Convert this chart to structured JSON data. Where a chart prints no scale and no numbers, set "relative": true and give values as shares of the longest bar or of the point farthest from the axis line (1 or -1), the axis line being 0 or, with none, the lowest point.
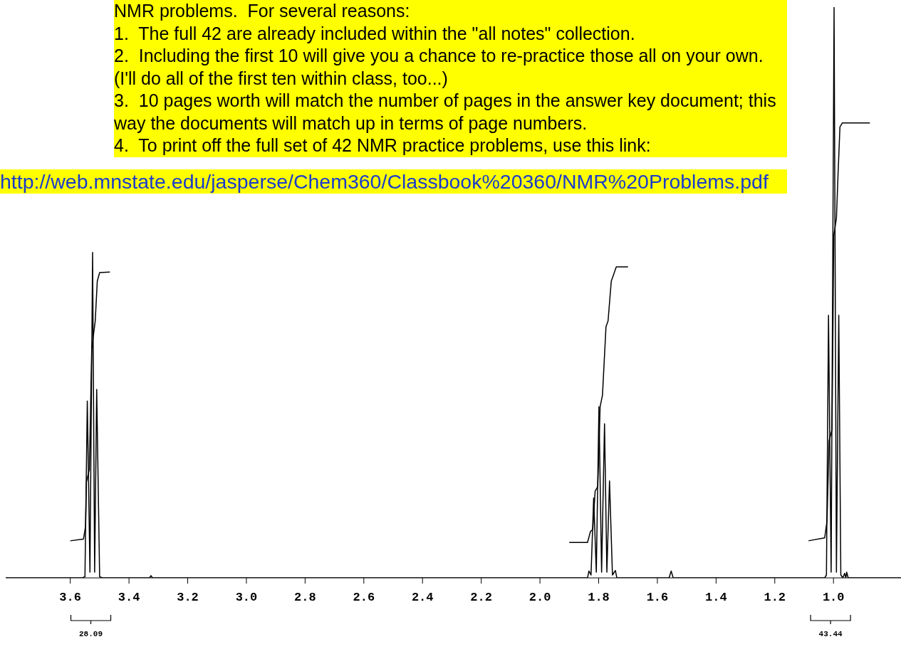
{
  "chart_data": {
    "type": "line",
    "relative": true,
    "xlim": [
      3.82,
      0.77
    ],
    "xticks": [
      3.6,
      3.4,
      3.2,
      {
        "value": 3,
        "label": "3.0"
      },
      2.8,
      2.6,
      2.4,
      2.2,
      {
        "value": 2,
        "label": "2.0"
      },
      1.8,
      1.6,
      1.4,
      1.2,
      {
        "value": 1,
        "label": "1.0"
      }
    ],
    "grid": false,
    "marker": "none",
    "line_style": "solid",
    "series": [
      {
        "color": "#000000",
        "x": [
          3.82,
          3.56,
          3.55,
          3.542,
          3.533,
          3.524,
          3.517,
          3.51,
          3.5,
          3.49,
          3.33,
          3.325,
          3.32,
          1.86,
          1.838,
          1.833,
          1.826,
          1.817,
          1.808,
          1.799,
          1.79,
          1.78,
          1.772,
          1.763,
          1.753,
          1.743,
          1.738,
          1.56,
          1.553,
          1.546,
          1.03,
          1.024,
          1.017,
          1.008,
          0.998,
          0.99,
          0.982,
          0.975,
          0.968,
          0.962,
          0.958,
          0.955,
          0.95,
          0.77
        ],
        "values": [
          0,
          0,
          0.002,
          0.31,
          0.01,
          0.57,
          0.01,
          0.33,
          0.002,
          0,
          0,
          0.004,
          0,
          0,
          0,
          0.012,
          0.005,
          0.14,
          0.01,
          0.3,
          0.01,
          0.27,
          0.01,
          0.17,
          0.005,
          0.013,
          0,
          0,
          0.012,
          0,
          0,
          0.005,
          0.46,
          0.01,
          1,
          0.01,
          0.46,
          0.005,
          0,
          0.008,
          0,
          0.01,
          0,
          0
        ]
      },
      {
        "color": "#000000",
        "x": [
          3.6,
          3.555,
          3.548,
          3.545,
          3.535,
          3.527,
          3.52,
          3.515,
          3.508,
          3.5,
          3.465
        ],
        "values": [
          0.065,
          0.068,
          0.09,
          0.168,
          0.19,
          0.4,
          0.43,
          0.45,
          0.52,
          0.535,
          0.536
        ]
      },
      {
        "color": "#000000",
        "x": [
          1.9,
          1.838,
          1.828,
          1.82,
          1.812,
          1.803,
          1.795,
          1.787,
          1.775,
          1.768,
          1.757,
          1.75,
          1.74,
          1.7
        ],
        "values": [
          0.062,
          0.062,
          0.081,
          0.085,
          0.152,
          0.16,
          0.3,
          0.32,
          0.44,
          0.45,
          0.52,
          0.53,
          0.545,
          0.545
        ]
      },
      {
        "color": "#000000",
        "x": [
          1.085,
          1.03,
          1.022,
          1.015,
          1.005,
          0.999,
          0.99,
          0.985,
          0.978,
          0.97,
          0.876
        ],
        "values": [
          0.065,
          0.07,
          0.1,
          0.24,
          0.26,
          0.6,
          0.63,
          0.7,
          0.79,
          0.797,
          0.797
        ]
      }
    ],
    "annotations": [
      "NMR problems.  For several reasons:",
      "1.  The full 42 are already included within the \"all notes\" collection.",
      "2.  Including the first 10 will give you a chance to re-practice those all on your own.  (I'll do all of the first ten within class, too...)",
      "3.  10 pages worth will match the number of pages in the answer key document; this way the documents will match up in terms of page numbers.",
      "4.  To print off the full set of 42 NMR practice problems, use this link:",
      "http://web.mnstate.edu/jasperse/Chem360/Classbook%20360/NMR%20Problems.pdf",
      {
        "text": "28.09",
        "x": 3.53
      },
      {
        "text": "43.44",
        "x": 1.01
      }
    ]
  }
}
